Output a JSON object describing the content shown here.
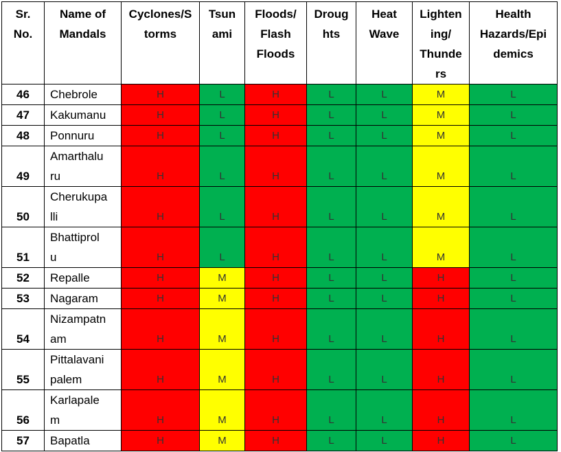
{
  "headers": {
    "sr": "Sr. No.",
    "name": "Name of Mandals",
    "hazards": [
      "Cyclones/Storms",
      "Tsunami",
      "Floods/ Flash Floods",
      "Droughts",
      "Heat Wave",
      "Lightening/ Thunders",
      "Health Hazards/Epidemics"
    ]
  },
  "header_lines": {
    "sr": [
      "Sr.",
      "No."
    ],
    "name": [
      "Name of",
      "Mandals"
    ],
    "h0": [
      "Cyclones/S",
      "torms"
    ],
    "h1": [
      "Tsun",
      "ami"
    ],
    "h2": [
      "Floods/",
      "Flash",
      "Floods"
    ],
    "h3": [
      "Droug",
      "hts"
    ],
    "h4": [
      "Heat",
      "Wave"
    ],
    "h5": [
      "Lighten",
      "ing/",
      "Thunde",
      "rs"
    ],
    "h6": [
      "Health",
      "Hazards/Epi",
      "demics"
    ]
  },
  "level_colors": {
    "H": "#ff0000",
    "M": "#ffff00",
    "L": "#00b050"
  },
  "rows": [
    {
      "sr": "46",
      "name_lines": [
        "Chebrole"
      ],
      "levels": [
        "H",
        "L",
        "H",
        "L",
        "L",
        "M",
        "L"
      ]
    },
    {
      "sr": "47",
      "name_lines": [
        "Kakumanu"
      ],
      "levels": [
        "H",
        "L",
        "H",
        "L",
        "L",
        "M",
        "L"
      ]
    },
    {
      "sr": "48",
      "name_lines": [
        "Ponnuru"
      ],
      "levels": [
        "H",
        "L",
        "H",
        "L",
        "L",
        "M",
        "L"
      ]
    },
    {
      "sr": "49",
      "name_lines": [
        "Amarthalu",
        "ru"
      ],
      "levels": [
        "H",
        "L",
        "H",
        "L",
        "L",
        "M",
        "L"
      ]
    },
    {
      "sr": "50",
      "name_lines": [
        "Cherukupa",
        "lli"
      ],
      "levels": [
        "H",
        "L",
        "H",
        "L",
        "L",
        "M",
        "L"
      ]
    },
    {
      "sr": "51",
      "name_lines": [
        "Bhattiprol",
        "u"
      ],
      "levels": [
        "H",
        "L",
        "H",
        "L",
        "L",
        "M",
        "L"
      ]
    },
    {
      "sr": "52",
      "name_lines": [
        "Repalle"
      ],
      "levels": [
        "H",
        "M",
        "H",
        "L",
        "L",
        "H",
        "L"
      ]
    },
    {
      "sr": "53",
      "name_lines": [
        "Nagaram"
      ],
      "levels": [
        "H",
        "M",
        "H",
        "L",
        "L",
        "H",
        "L"
      ]
    },
    {
      "sr": "54",
      "name_lines": [
        "Nizampatn",
        "am"
      ],
      "levels": [
        "H",
        "M",
        "H",
        "L",
        "L",
        "H",
        "L"
      ]
    },
    {
      "sr": "55",
      "name_lines": [
        "Pittalavani",
        "palem"
      ],
      "levels": [
        "H",
        "M",
        "H",
        "L",
        "L",
        "H",
        "L"
      ]
    },
    {
      "sr": "56",
      "name_lines": [
        "Karlapale",
        "m"
      ],
      "levels": [
        "H",
        "M",
        "H",
        "L",
        "L",
        "H",
        "L"
      ]
    },
    {
      "sr": "57",
      "name_lines": [
        "Bapatla"
      ],
      "levels": [
        "H",
        "M",
        "H",
        "L",
        "L",
        "H",
        "L"
      ]
    }
  ]
}
